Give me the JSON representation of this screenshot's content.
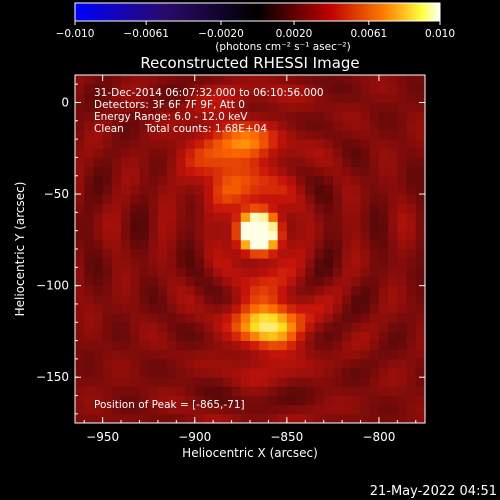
{
  "chart_data": {
    "type": "heatmap",
    "title": "Reconstructed RHESSI Image",
    "xlabel": "Heliocentric X (arcsec)",
    "ylabel": "Heliocentric Y (arcsec)",
    "xlim": [
      -965,
      -775
    ],
    "ylim": [
      -175,
      15
    ],
    "xticks": [
      -950,
      -900,
      -850,
      -800
    ],
    "yticks": [
      0,
      -50,
      -100,
      -150
    ],
    "xtick_labels": [
      "−950",
      "−900",
      "−850",
      "−800"
    ],
    "ytick_labels": [
      "0",
      "−50",
      "−100",
      "−150"
    ],
    "colorbar": {
      "range": [
        -0.01,
        0.01
      ],
      "ticks": [
        -0.01,
        -0.0061,
        -0.002,
        0.002,
        0.0061,
        0.01
      ],
      "tick_labels": [
        "−0.010",
        "−0.0061",
        "−0.0020",
        "0.0020",
        "0.0061",
        "0.010"
      ],
      "unit_label": "(photons cm⁻² s⁻¹ asec⁻²)",
      "colors": [
        "#0000ff",
        "#000000",
        "#ff0000",
        "#ffff00",
        "#ffffff"
      ]
    },
    "sources": [
      {
        "x": -865,
        "y": -71,
        "peak": 1.0,
        "width": 9
      },
      {
        "x": -860,
        "y": -120,
        "peak": 0.55,
        "width": 14
      },
      {
        "x": -878,
        "y": -30,
        "peak": 0.4,
        "width": 18
      }
    ],
    "background_level": 0.3,
    "annotations": {
      "time_range": "31-Dec-2014 06:07:32.000 to 06:10:56.000",
      "detectors": "Detectors: 3F 6F 7F 9F, Att 0",
      "energy_range": "Energy Range: 6.0 - 12.0 keV",
      "method": "Clean",
      "total_counts": "Total counts: 1.68E+04",
      "peak_position": "Position of Peak = [-865,-71]"
    }
  },
  "footer": {
    "timestamp": "21-May-2022 04:51"
  }
}
